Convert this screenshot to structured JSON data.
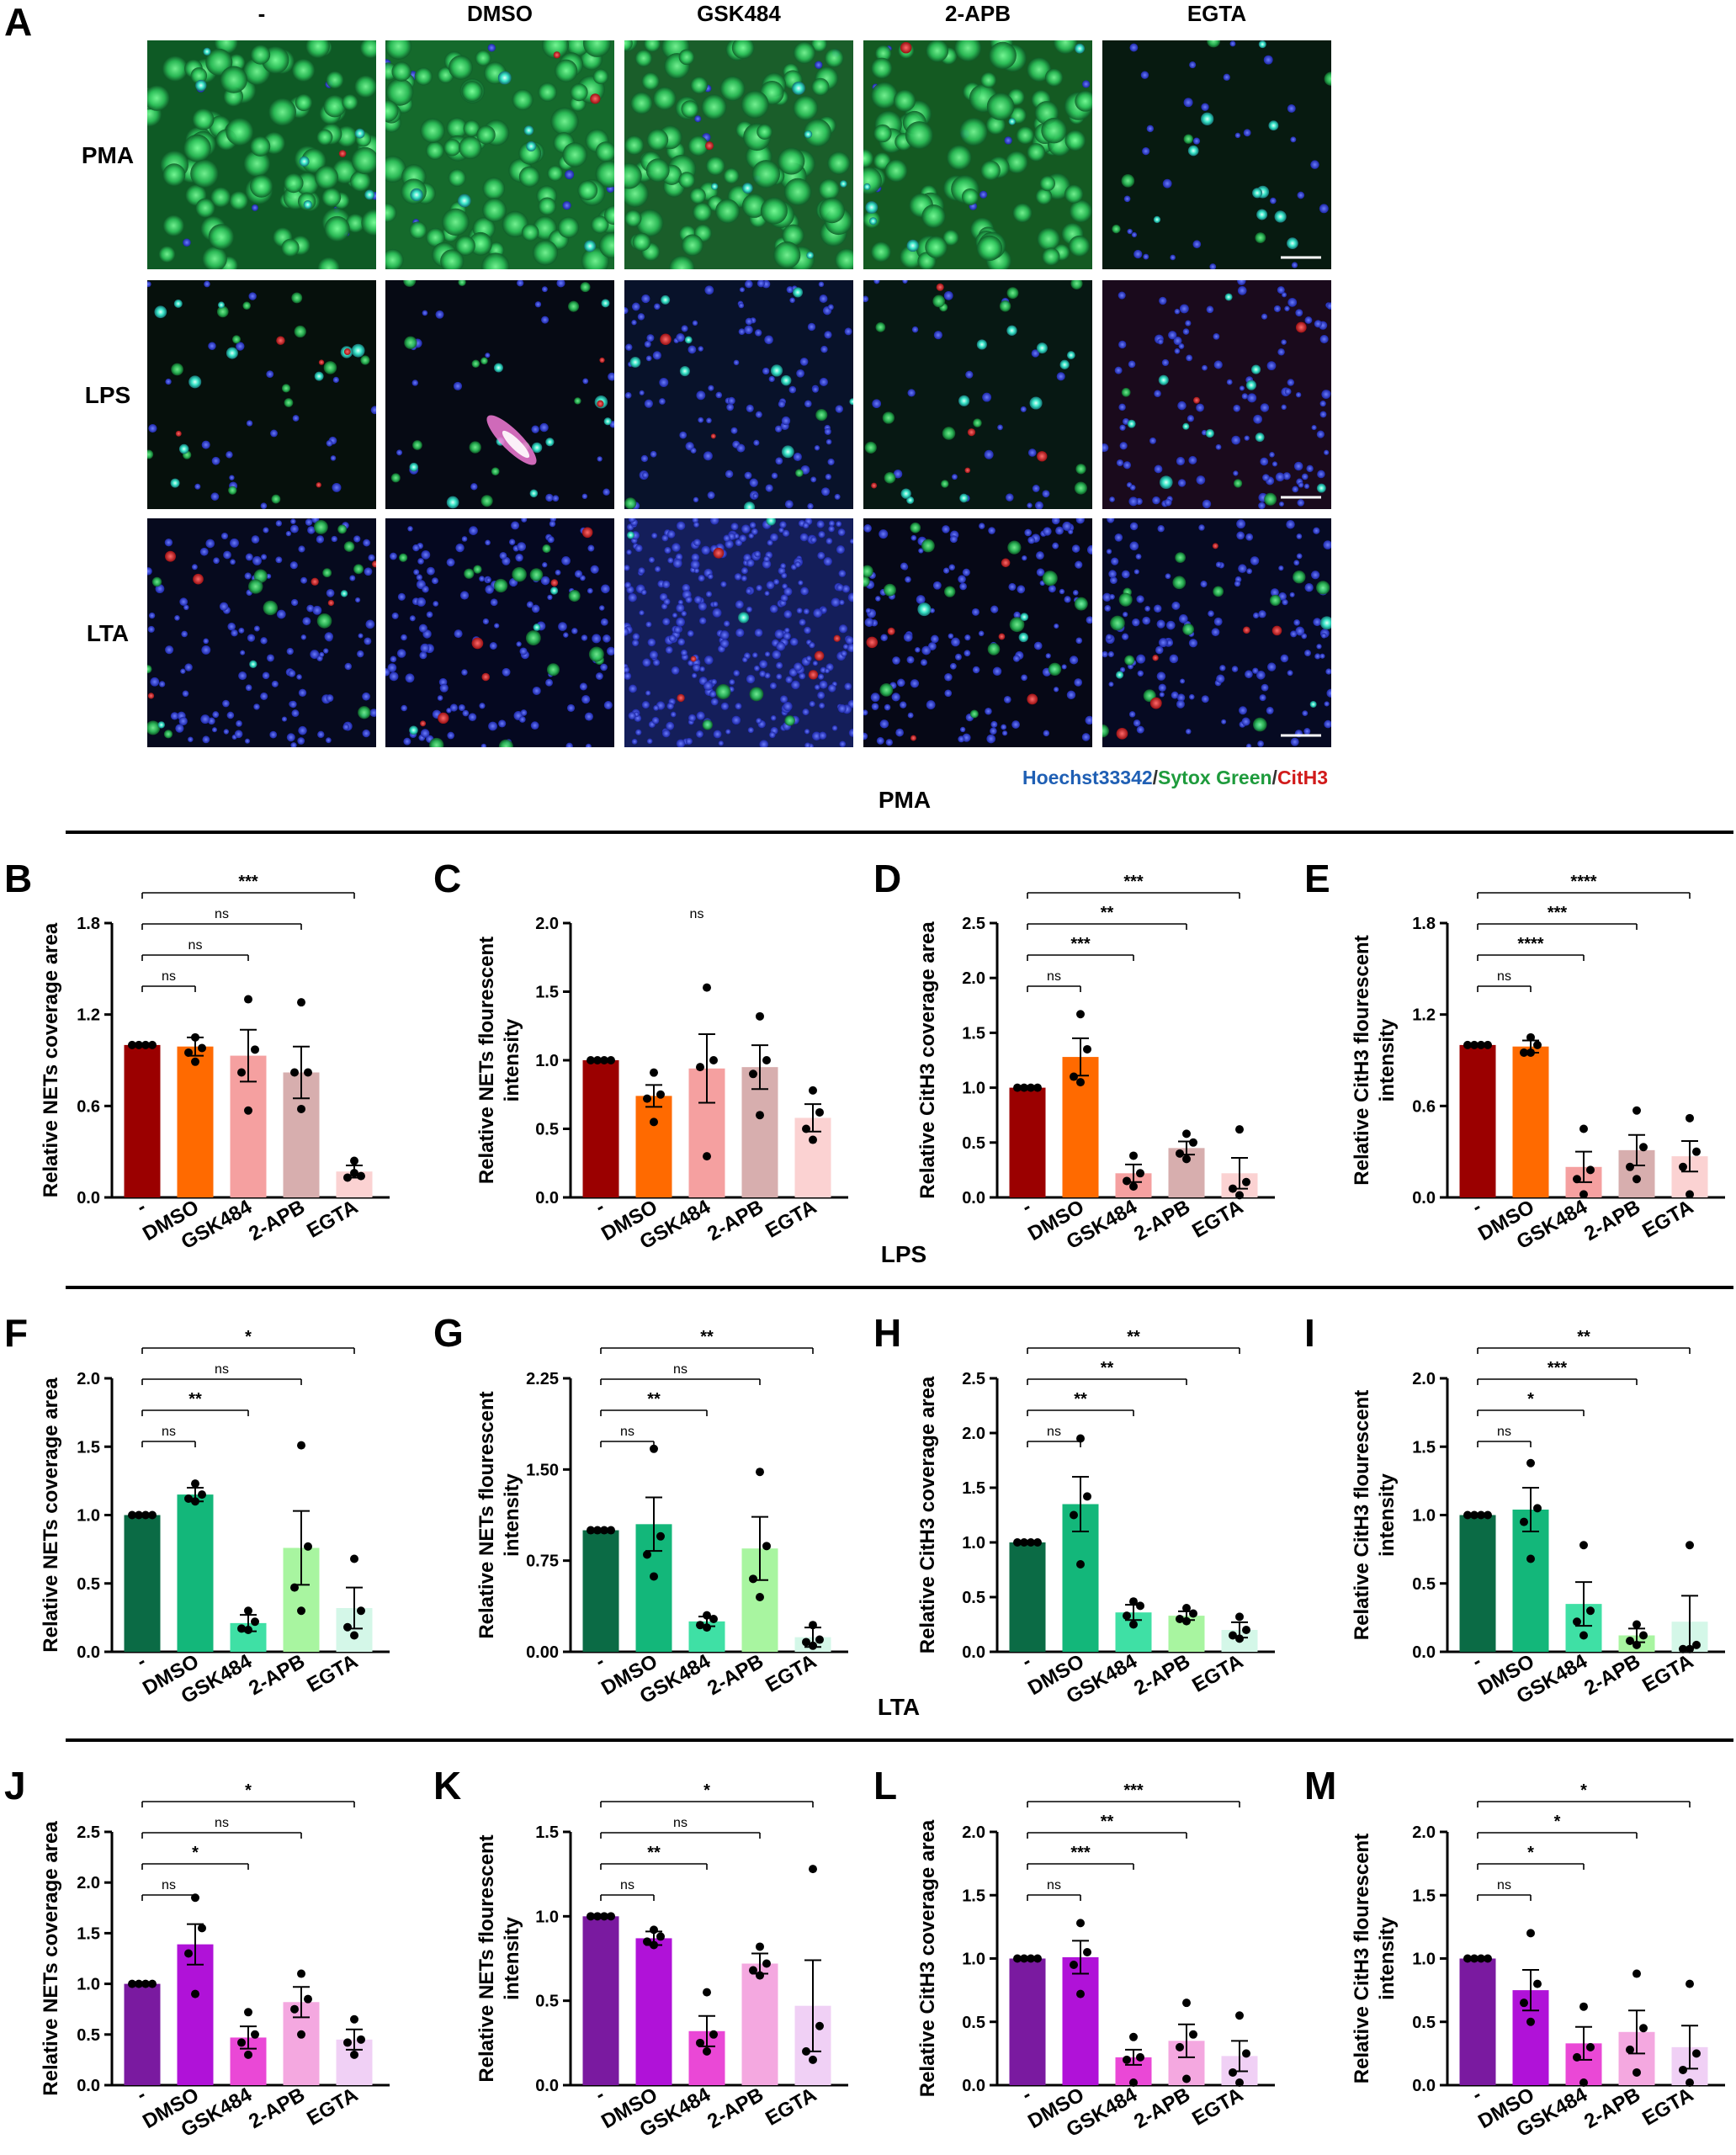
{
  "figure": {
    "panel_a_letter": "A",
    "column_headers": [
      "-",
      "DMSO",
      "GSK484",
      "2-APB",
      "EGTA"
    ],
    "row_labels": [
      "PMA",
      "LPS",
      "LTA"
    ],
    "stain_legend": {
      "hoechst": "Hoechst33342",
      "sep1": "/",
      "sytox": "Sytox Green",
      "sep2": "/",
      "cith3": "CitH3"
    },
    "stain_colors": {
      "hoechst": "#1f5fb4",
      "sytox": "#1e9b3c",
      "cith3": "#d11a1a",
      "sep": "#333333"
    },
    "section_titles": [
      "PMA",
      "LPS",
      "LTA"
    ]
  },
  "chart_data": [
    {
      "panel": "B",
      "type": "bar",
      "categories": [
        "-",
        "DMSO",
        "GSK484",
        "2-APB",
        "EGTA"
      ],
      "ylabel": "Relative NETs coverage area",
      "ylim": [
        0,
        1.8
      ],
      "yticks": [
        "0.0",
        "0.6",
        "1.2",
        "1.8"
      ],
      "colors": [
        "#9b0000",
        "#ff6a00",
        "#f5a0a0",
        "#d7aeae",
        "#fbd2d2"
      ],
      "values": [
        1.0,
        0.99,
        0.93,
        0.82,
        0.17
      ],
      "sem": [
        0,
        0.06,
        0.17,
        0.17,
        0.04
      ],
      "points": [
        [
          1,
          1,
          1,
          1
        ],
        [
          1.05,
          0.98,
          0.95,
          0.89
        ],
        [
          1.3,
          0.97,
          0.82,
          0.57
        ],
        [
          1.28,
          0.82,
          0.82,
          0.58
        ],
        [
          0.24,
          0.14,
          0.13,
          0.16
        ]
      ],
      "comparisons": [
        {
          "to": "DMSO",
          "label": "ns"
        },
        {
          "to": "GSK484",
          "label": "ns"
        },
        {
          "to": "2-APB",
          "label": "ns"
        },
        {
          "to": "EGTA",
          "label": "***"
        }
      ]
    },
    {
      "panel": "C",
      "type": "bar",
      "categories": [
        "-",
        "DMSO",
        "GSK484",
        "2-APB",
        "EGTA"
      ],
      "ylabel": "Relative NETs flourescent intensity",
      "ylim": [
        0,
        2.0
      ],
      "yticks": [
        "0.0",
        "0.5",
        "1.0",
        "1.5",
        "2.0"
      ],
      "colors": [
        "#9b0000",
        "#ff6a00",
        "#f5a0a0",
        "#d7aeae",
        "#fbd2d2"
      ],
      "values": [
        1.0,
        0.74,
        0.94,
        0.95,
        0.58
      ],
      "sem": [
        0,
        0.08,
        0.25,
        0.16,
        0.1
      ],
      "points": [
        [
          1,
          1,
          1,
          1
        ],
        [
          0.91,
          0.75,
          0.72,
          0.55
        ],
        [
          1.53,
          1.0,
          0.95,
          0.3
        ],
        [
          1.32,
          1.0,
          0.9,
          0.6
        ],
        [
          0.78,
          0.62,
          0.5,
          0.42
        ]
      ],
      "comparisons": [],
      "overall": "ns"
    },
    {
      "panel": "D",
      "type": "bar",
      "categories": [
        "-",
        "DMSO",
        "GSK484",
        "2-APB",
        "EGTA"
      ],
      "ylabel": "Relative CitH3 coverage area",
      "ylim": [
        0,
        2.5
      ],
      "yticks": [
        "0.0",
        "0.5",
        "1.0",
        "1.5",
        "2.0",
        "2.5"
      ],
      "colors": [
        "#9b0000",
        "#ff6a00",
        "#f5a0a0",
        "#d7aeae",
        "#fbd2d2"
      ],
      "values": [
        1.0,
        1.28,
        0.22,
        0.45,
        0.22
      ],
      "sem": [
        0,
        0.17,
        0.08,
        0.06,
        0.14
      ],
      "points": [
        [
          1,
          1,
          1,
          1
        ],
        [
          1.67,
          1.35,
          1.1,
          1.05
        ],
        [
          0.38,
          0.22,
          0.15,
          0.1
        ],
        [
          0.58,
          0.5,
          0.4,
          0.35
        ],
        [
          0.62,
          0.14,
          0.08,
          0.02
        ]
      ],
      "comparisons": [
        {
          "to": "DMSO",
          "label": "ns"
        },
        {
          "to": "GSK484",
          "label": "***"
        },
        {
          "to": "2-APB",
          "label": "**"
        },
        {
          "to": "EGTA",
          "label": "***"
        }
      ]
    },
    {
      "panel": "E",
      "type": "bar",
      "categories": [
        "-",
        "DMSO",
        "GSK484",
        "2-APB",
        "EGTA"
      ],
      "ylabel": "Relative CitH3 flourescent intensity",
      "ylim": [
        0,
        1.8
      ],
      "yticks": [
        "0.0",
        "0.6",
        "1.2",
        "1.8"
      ],
      "colors": [
        "#9b0000",
        "#ff6a00",
        "#f5a0a0",
        "#d7aeae",
        "#fbd2d2"
      ],
      "values": [
        1.0,
        0.99,
        0.2,
        0.31,
        0.27
      ],
      "sem": [
        0,
        0.04,
        0.1,
        0.1,
        0.1
      ],
      "points": [
        [
          1,
          1,
          1,
          1
        ],
        [
          1.05,
          1.0,
          0.95,
          0.95
        ],
        [
          0.45,
          0.18,
          0.12,
          0.02
        ],
        [
          0.57,
          0.33,
          0.2,
          0.12
        ],
        [
          0.52,
          0.3,
          0.2,
          0.02
        ]
      ],
      "comparisons": [
        {
          "to": "DMSO",
          "label": "ns"
        },
        {
          "to": "GSK484",
          "label": "****"
        },
        {
          "to": "2-APB",
          "label": "***"
        },
        {
          "to": "EGTA",
          "label": "****"
        }
      ]
    },
    {
      "panel": "F",
      "type": "bar",
      "categories": [
        "-",
        "DMSO",
        "GSK484",
        "2-APB",
        "EGTA"
      ],
      "ylabel": "Relative NETs coverage area",
      "ylim": [
        0,
        2.0
      ],
      "yticks": [
        "0.0",
        "0.5",
        "1.0",
        "1.5",
        "2.0"
      ],
      "colors": [
        "#0b6b45",
        "#13b77a",
        "#3fe0a5",
        "#a8f5a0",
        "#d4f7e8"
      ],
      "values": [
        1.0,
        1.15,
        0.21,
        0.76,
        0.32
      ],
      "sem": [
        0,
        0.05,
        0.06,
        0.27,
        0.15
      ],
      "points": [
        [
          1,
          1,
          1,
          1
        ],
        [
          1.23,
          1.15,
          1.12,
          1.1
        ],
        [
          0.3,
          0.22,
          0.17,
          0.16
        ],
        [
          1.51,
          0.77,
          0.47,
          0.3
        ],
        [
          0.68,
          0.3,
          0.18,
          0.12
        ]
      ],
      "comparisons": [
        {
          "to": "DMSO",
          "label": "ns"
        },
        {
          "to": "GSK484",
          "label": "**"
        },
        {
          "to": "2-APB",
          "label": "ns"
        },
        {
          "to": "EGTA",
          "label": "*"
        }
      ]
    },
    {
      "panel": "G",
      "type": "bar",
      "categories": [
        "-",
        "DMSO",
        "GSK484",
        "2-APB",
        "EGTA"
      ],
      "ylabel": "Relative NETs flourescent intensity",
      "ylim": [
        0,
        2.25
      ],
      "yticks": [
        "0.00",
        "0.75",
        "1.50",
        "2.25"
      ],
      "colors": [
        "#0b6b45",
        "#13b77a",
        "#3fe0a5",
        "#a8f5a0",
        "#d4f7e8"
      ],
      "values": [
        1.0,
        1.05,
        0.25,
        0.85,
        0.12
      ],
      "sem": [
        0,
        0.22,
        0.04,
        0.26,
        0.08
      ],
      "points": [
        [
          1,
          1,
          1,
          1
        ],
        [
          1.67,
          0.95,
          0.8,
          0.62
        ],
        [
          0.3,
          0.27,
          0.22,
          0.2
        ],
        [
          1.48,
          0.87,
          0.6,
          0.45
        ],
        [
          0.22,
          0.1,
          0.08,
          0.05
        ]
      ],
      "comparisons": [
        {
          "to": "DMSO",
          "label": "ns"
        },
        {
          "to": "GSK484",
          "label": "**"
        },
        {
          "to": "2-APB",
          "label": "ns"
        },
        {
          "to": "EGTA",
          "label": "**"
        }
      ]
    },
    {
      "panel": "H",
      "type": "bar",
      "categories": [
        "-",
        "DMSO",
        "GSK484",
        "2-APB",
        "EGTA"
      ],
      "ylabel": "Relative CitH3 coverage area",
      "ylim": [
        0,
        2.5
      ],
      "yticks": [
        "0.0",
        "0.5",
        "1.0",
        "1.5",
        "2.0",
        "2.5"
      ],
      "colors": [
        "#0b6b45",
        "#13b77a",
        "#3fe0a5",
        "#a8f5a0",
        "#d4f7e8"
      ],
      "values": [
        1.0,
        1.35,
        0.36,
        0.33,
        0.2
      ],
      "sem": [
        0,
        0.25,
        0.07,
        0.04,
        0.07
      ],
      "points": [
        [
          1,
          1,
          1,
          1
        ],
        [
          1.95,
          1.42,
          1.25,
          0.8
        ],
        [
          0.46,
          0.42,
          0.33,
          0.25
        ],
        [
          0.4,
          0.35,
          0.3,
          0.28
        ],
        [
          0.32,
          0.2,
          0.15,
          0.12
        ]
      ],
      "comparisons": [
        {
          "to": "DMSO",
          "label": "ns"
        },
        {
          "to": "GSK484",
          "label": "**"
        },
        {
          "to": "2-APB",
          "label": "**"
        },
        {
          "to": "EGTA",
          "label": "**"
        }
      ]
    },
    {
      "panel": "I",
      "type": "bar",
      "categories": [
        "-",
        "DMSO",
        "GSK484",
        "2-APB",
        "EGTA"
      ],
      "ylabel": "Relative CitH3 flourescent intensity",
      "ylim": [
        0,
        2.0
      ],
      "yticks": [
        "0.0",
        "0.5",
        "1.0",
        "1.5",
        "2.0"
      ],
      "colors": [
        "#0b6b45",
        "#13b77a",
        "#3fe0a5",
        "#a8f5a0",
        "#d4f7e8"
      ],
      "values": [
        1.0,
        1.04,
        0.35,
        0.12,
        0.22
      ],
      "sem": [
        0,
        0.16,
        0.16,
        0.05,
        0.19
      ],
      "points": [
        [
          1,
          1,
          1,
          1
        ],
        [
          1.38,
          1.05,
          0.95,
          0.68
        ],
        [
          0.78,
          0.3,
          0.22,
          0.12
        ],
        [
          0.2,
          0.12,
          0.08,
          0.05
        ],
        [
          0.78,
          0.05,
          0.02,
          0.02
        ]
      ],
      "comparisons": [
        {
          "to": "DMSO",
          "label": "ns"
        },
        {
          "to": "GSK484",
          "label": "*"
        },
        {
          "to": "2-APB",
          "label": "***"
        },
        {
          "to": "EGTA",
          "label": "**"
        }
      ]
    },
    {
      "panel": "J",
      "type": "bar",
      "categories": [
        "-",
        "DMSO",
        "GSK484",
        "2-APB",
        "EGTA"
      ],
      "ylabel": "Relative NETs coverage area",
      "ylim": [
        0,
        2.5
      ],
      "yticks": [
        "0.0",
        "0.5",
        "1.0",
        "1.5",
        "2.0",
        "2.5"
      ],
      "colors": [
        "#7a1aa0",
        "#b012d8",
        "#ea48d6",
        "#f4a8e0",
        "#f0d0f5"
      ],
      "values": [
        1.0,
        1.39,
        0.47,
        0.82,
        0.45
      ],
      "sem": [
        0,
        0.2,
        0.11,
        0.15,
        0.1
      ],
      "points": [
        [
          1,
          1,
          1,
          1
        ],
        [
          1.85,
          1.55,
          1.3,
          0.9
        ],
        [
          0.72,
          0.5,
          0.42,
          0.3
        ],
        [
          1.1,
          0.85,
          0.75,
          0.5
        ],
        [
          0.65,
          0.45,
          0.42,
          0.3
        ]
      ],
      "comparisons": [
        {
          "to": "DMSO",
          "label": "ns"
        },
        {
          "to": "GSK484",
          "label": "*"
        },
        {
          "to": "2-APB",
          "label": "ns"
        },
        {
          "to": "EGTA",
          "label": "*"
        }
      ]
    },
    {
      "panel": "K",
      "type": "bar",
      "categories": [
        "-",
        "DMSO",
        "GSK484",
        "2-APB",
        "EGTA"
      ],
      "ylabel": "Relative NETs flourescent intensity",
      "ylim": [
        0,
        1.5
      ],
      "yticks": [
        "0.0",
        "0.5",
        "1.0",
        "1.5"
      ],
      "colors": [
        "#7a1aa0",
        "#b012d8",
        "#ea48d6",
        "#f4a8e0",
        "#f0d0f5"
      ],
      "values": [
        1.0,
        0.87,
        0.32,
        0.72,
        0.47
      ],
      "sem": [
        0,
        0.04,
        0.09,
        0.06,
        0.27
      ],
      "points": [
        [
          1,
          1,
          1,
          1
        ],
        [
          0.92,
          0.88,
          0.85,
          0.83
        ],
        [
          0.55,
          0.3,
          0.25,
          0.2
        ],
        [
          0.82,
          0.72,
          0.68,
          0.65
        ],
        [
          1.28,
          0.35,
          0.2,
          0.15
        ]
      ],
      "comparisons": [
        {
          "to": "DMSO",
          "label": "ns"
        },
        {
          "to": "GSK484",
          "label": "**"
        },
        {
          "to": "2-APB",
          "label": "ns"
        },
        {
          "to": "EGTA",
          "label": "*"
        }
      ]
    },
    {
      "panel": "L",
      "type": "bar",
      "categories": [
        "-",
        "DMSO",
        "GSK484",
        "2-APB",
        "EGTA"
      ],
      "ylabel": "Relative CitH3 coverage area",
      "ylim": [
        0,
        2.0
      ],
      "yticks": [
        "0.0",
        "0.5",
        "1.0",
        "1.5",
        "2.0"
      ],
      "colors": [
        "#7a1aa0",
        "#b012d8",
        "#ea48d6",
        "#f4a8e0",
        "#f0d0f5"
      ],
      "values": [
        1.0,
        1.01,
        0.22,
        0.35,
        0.23
      ],
      "sem": [
        0,
        0.13,
        0.06,
        0.13,
        0.12
      ],
      "points": [
        [
          1,
          1,
          1,
          1
        ],
        [
          1.28,
          1.05,
          0.95,
          0.72
        ],
        [
          0.38,
          0.22,
          0.2,
          0.02
        ],
        [
          0.65,
          0.4,
          0.3,
          0.05
        ],
        [
          0.55,
          0.25,
          0.1,
          0.02
        ]
      ],
      "comparisons": [
        {
          "to": "DMSO",
          "label": "ns"
        },
        {
          "to": "GSK484",
          "label": "***"
        },
        {
          "to": "2-APB",
          "label": "**"
        },
        {
          "to": "EGTA",
          "label": "***"
        }
      ]
    },
    {
      "panel": "M",
      "type": "bar",
      "categories": [
        "-",
        "DMSO",
        "GSK484",
        "2-APB",
        "EGTA"
      ],
      "ylabel": "Relative CitH3 flourescent intensity",
      "ylim": [
        0,
        2.0
      ],
      "yticks": [
        "0.0",
        "0.5",
        "1.0",
        "1.5",
        "2.0"
      ],
      "colors": [
        "#7a1aa0",
        "#b012d8",
        "#ea48d6",
        "#f4a8e0",
        "#f0d0f5"
      ],
      "values": [
        1.0,
        0.75,
        0.33,
        0.42,
        0.3
      ],
      "sem": [
        0,
        0.16,
        0.13,
        0.17,
        0.17
      ],
      "points": [
        [
          1,
          1,
          1,
          1
        ],
        [
          1.2,
          0.8,
          0.65,
          0.5
        ],
        [
          0.62,
          0.3,
          0.22,
          0.02
        ],
        [
          0.88,
          0.45,
          0.28,
          0.1
        ],
        [
          0.8,
          0.25,
          0.12,
          0.02
        ]
      ],
      "comparisons": [
        {
          "to": "DMSO",
          "label": "ns"
        },
        {
          "to": "GSK484",
          "label": "*"
        },
        {
          "to": "2-APB",
          "label": "*"
        },
        {
          "to": "EGTA",
          "label": "*"
        }
      ]
    }
  ]
}
